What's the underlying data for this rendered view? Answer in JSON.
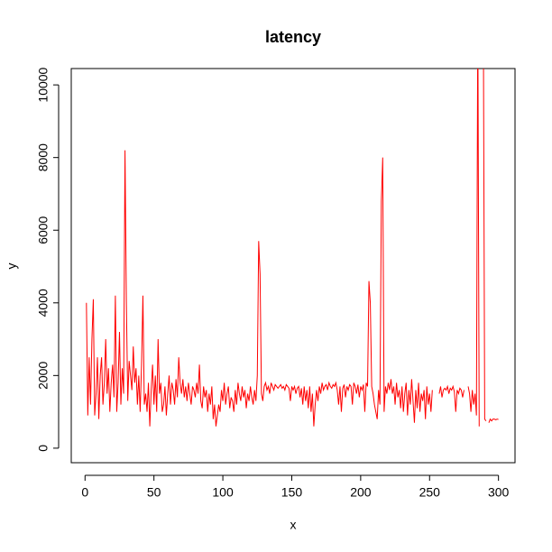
{
  "chart_data": {
    "type": "line",
    "title": "latency",
    "x_label": "x",
    "y_label": "y",
    "x": [
      1,
      2,
      3,
      4,
      5,
      6,
      7,
      8,
      9,
      10,
      11,
      12,
      13,
      14,
      15,
      16,
      17,
      18,
      19,
      20,
      21,
      22,
      23,
      24,
      25,
      26,
      27,
      28,
      29,
      30,
      31,
      32,
      33,
      34,
      35,
      36,
      37,
      38,
      39,
      40,
      41,
      42,
      43,
      44,
      45,
      46,
      47,
      48,
      49,
      50,
      51,
      52,
      53,
      54,
      55,
      56,
      57,
      58,
      59,
      60,
      61,
      62,
      63,
      64,
      65,
      66,
      67,
      68,
      69,
      70,
      71,
      72,
      73,
      74,
      75,
      76,
      77,
      78,
      79,
      80,
      81,
      82,
      83,
      84,
      85,
      86,
      87,
      88,
      89,
      90,
      91,
      92,
      93,
      94,
      95,
      96,
      97,
      98,
      99,
      100,
      101,
      102,
      103,
      104,
      105,
      106,
      107,
      108,
      109,
      110,
      111,
      112,
      113,
      114,
      115,
      116,
      117,
      118,
      119,
      120,
      121,
      122,
      123,
      124,
      125,
      126,
      127,
      128,
      129,
      130,
      131,
      132,
      133,
      134,
      135,
      136,
      137,
      138,
      139,
      140,
      141,
      142,
      143,
      144,
      145,
      146,
      147,
      148,
      149,
      150,
      151,
      152,
      153,
      154,
      155,
      156,
      157,
      158,
      159,
      160,
      161,
      162,
      163,
      164,
      165,
      166,
      167,
      168,
      169,
      170,
      171,
      172,
      173,
      174,
      175,
      176,
      177,
      178,
      179,
      180,
      181,
      182,
      183,
      184,
      185,
      186,
      187,
      188,
      189,
      190,
      191,
      192,
      193,
      194,
      195,
      196,
      197,
      198,
      199,
      200,
      201,
      202,
      203,
      204,
      205,
      206,
      207,
      208,
      209,
      210,
      211,
      212,
      213,
      214,
      215,
      216,
      217,
      218,
      219,
      220,
      221,
      222,
      223,
      224,
      225,
      226,
      227,
      228,
      229,
      230,
      231,
      232,
      233,
      234,
      235,
      236,
      237,
      238,
      239,
      240,
      241,
      242,
      243,
      244,
      245,
      246,
      247,
      248,
      249,
      250,
      251,
      252,
      253,
      254,
      255,
      256,
      257,
      258,
      259,
      260,
      261,
      262,
      263,
      264,
      265,
      266,
      267,
      268,
      269,
      270,
      271,
      272,
      273,
      274,
      275,
      276,
      277,
      278,
      279,
      280,
      281,
      282,
      283,
      284,
      285,
      286,
      287,
      288,
      289,
      290,
      291,
      292,
      293,
      294,
      295,
      296,
      297,
      298,
      299,
      300
    ],
    "series": [
      {
        "name": "latency",
        "color": "#ff0000",
        "values": [
          4000,
          900,
          2500,
          1200,
          3000,
          4100,
          900,
          1500,
          2500,
          800,
          2000,
          2500,
          1200,
          1800,
          3000,
          1500,
          2200,
          1000,
          1800,
          2300,
          1400,
          4200,
          1000,
          1800,
          3200,
          1200,
          2200,
          1500,
          8200,
          4000,
          1300,
          2400,
          2000,
          1600,
          2800,
          1800,
          2200,
          1200,
          2000,
          1000,
          2300,
          4200,
          1200,
          1500,
          1000,
          1800,
          600,
          1600,
          2300,
          1200,
          2000,
          1000,
          3000,
          1500,
          1800,
          1000,
          1200,
          1700,
          900,
          1500,
          2000,
          1200,
          1800,
          1600,
          1200,
          1900,
          1400,
          2500,
          1800,
          1500,
          1900,
          1400,
          1700,
          1300,
          1800,
          1500,
          1200,
          1700,
          1600,
          1400,
          1800,
          1500,
          2300,
          1300,
          1100,
          1700,
          1400,
          1600,
          1000,
          1500,
          1200,
          1700,
          800,
          1200,
          600,
          900,
          1200,
          1000,
          1600,
          1300,
          1800,
          1200,
          1500,
          1700,
          1100,
          1400,
          1300,
          1000,
          1600,
          1200,
          1800,
          1500,
          1300,
          1700,
          1400,
          1600,
          1100,
          1500,
          1300,
          1700,
          1400,
          1200,
          1600,
          1300,
          2000,
          5700,
          4800,
          1500,
          1300,
          1700,
          1800,
          1600,
          1700,
          1500,
          1800,
          1700,
          1600,
          1750,
          1700,
          1650,
          1700,
          1750,
          1650,
          1700,
          1600,
          1750,
          1700,
          1650,
          1300,
          1700,
          1600,
          1700,
          1500,
          1650,
          1700,
          1400,
          1650,
          1200,
          1700,
          1300,
          1600,
          1100,
          1700,
          1000,
          1500,
          600,
          1200,
          1600,
          1300,
          1700,
          1500,
          1800,
          1600,
          1700,
          1750,
          1600,
          1800,
          1700,
          1650,
          1750,
          1700,
          1800,
          1600,
          1200,
          1700,
          1000,
          1650,
          1750,
          1400,
          1700,
          1600,
          1750,
          1700,
          1200,
          1800,
          1700,
          1500,
          1750,
          1400,
          1700,
          1600,
          1750,
          1000,
          1800,
          1700,
          4600,
          4000,
          1700,
          1500,
          1200,
          1000,
          800,
          1600,
          1200,
          6800,
          8000,
          1000,
          1700,
          1500,
          1800,
          1600,
          1900,
          1500,
          1700,
          1200,
          1800,
          1400,
          1600,
          1100,
          1700,
          1000,
          1500,
          1800,
          900,
          1600,
          1200,
          1900,
          1300,
          700,
          1600,
          1100,
          1800,
          1000,
          1500,
          1300,
          1600,
          800,
          1700,
          1200,
          1500,
          1000,
          1600,
          null,
          null,
          null,
          null,
          1500,
          1700,
          1400,
          1600,
          1650,
          1600,
          1700,
          1500,
          1650,
          1600,
          1700,
          1550,
          1000,
          1600,
          1500,
          1650,
          1600,
          1400,
          1600,
          null,
          null,
          1700,
          1500,
          1000,
          1600,
          1200,
          1500,
          900,
          12000,
          600,
          null,
          null,
          12000,
          800,
          750,
          null,
          700,
          800,
          750,
          800,
          800,
          780,
          800,
          790
        ]
      }
    ],
    "xlim": [
      -10,
      312
    ],
    "ylim": [
      -400,
      10450
    ],
    "xticks": [
      0,
      50,
      100,
      150,
      200,
      250,
      300
    ],
    "yticks": [
      0,
      2000,
      4000,
      6000,
      8000,
      10000
    ]
  }
}
